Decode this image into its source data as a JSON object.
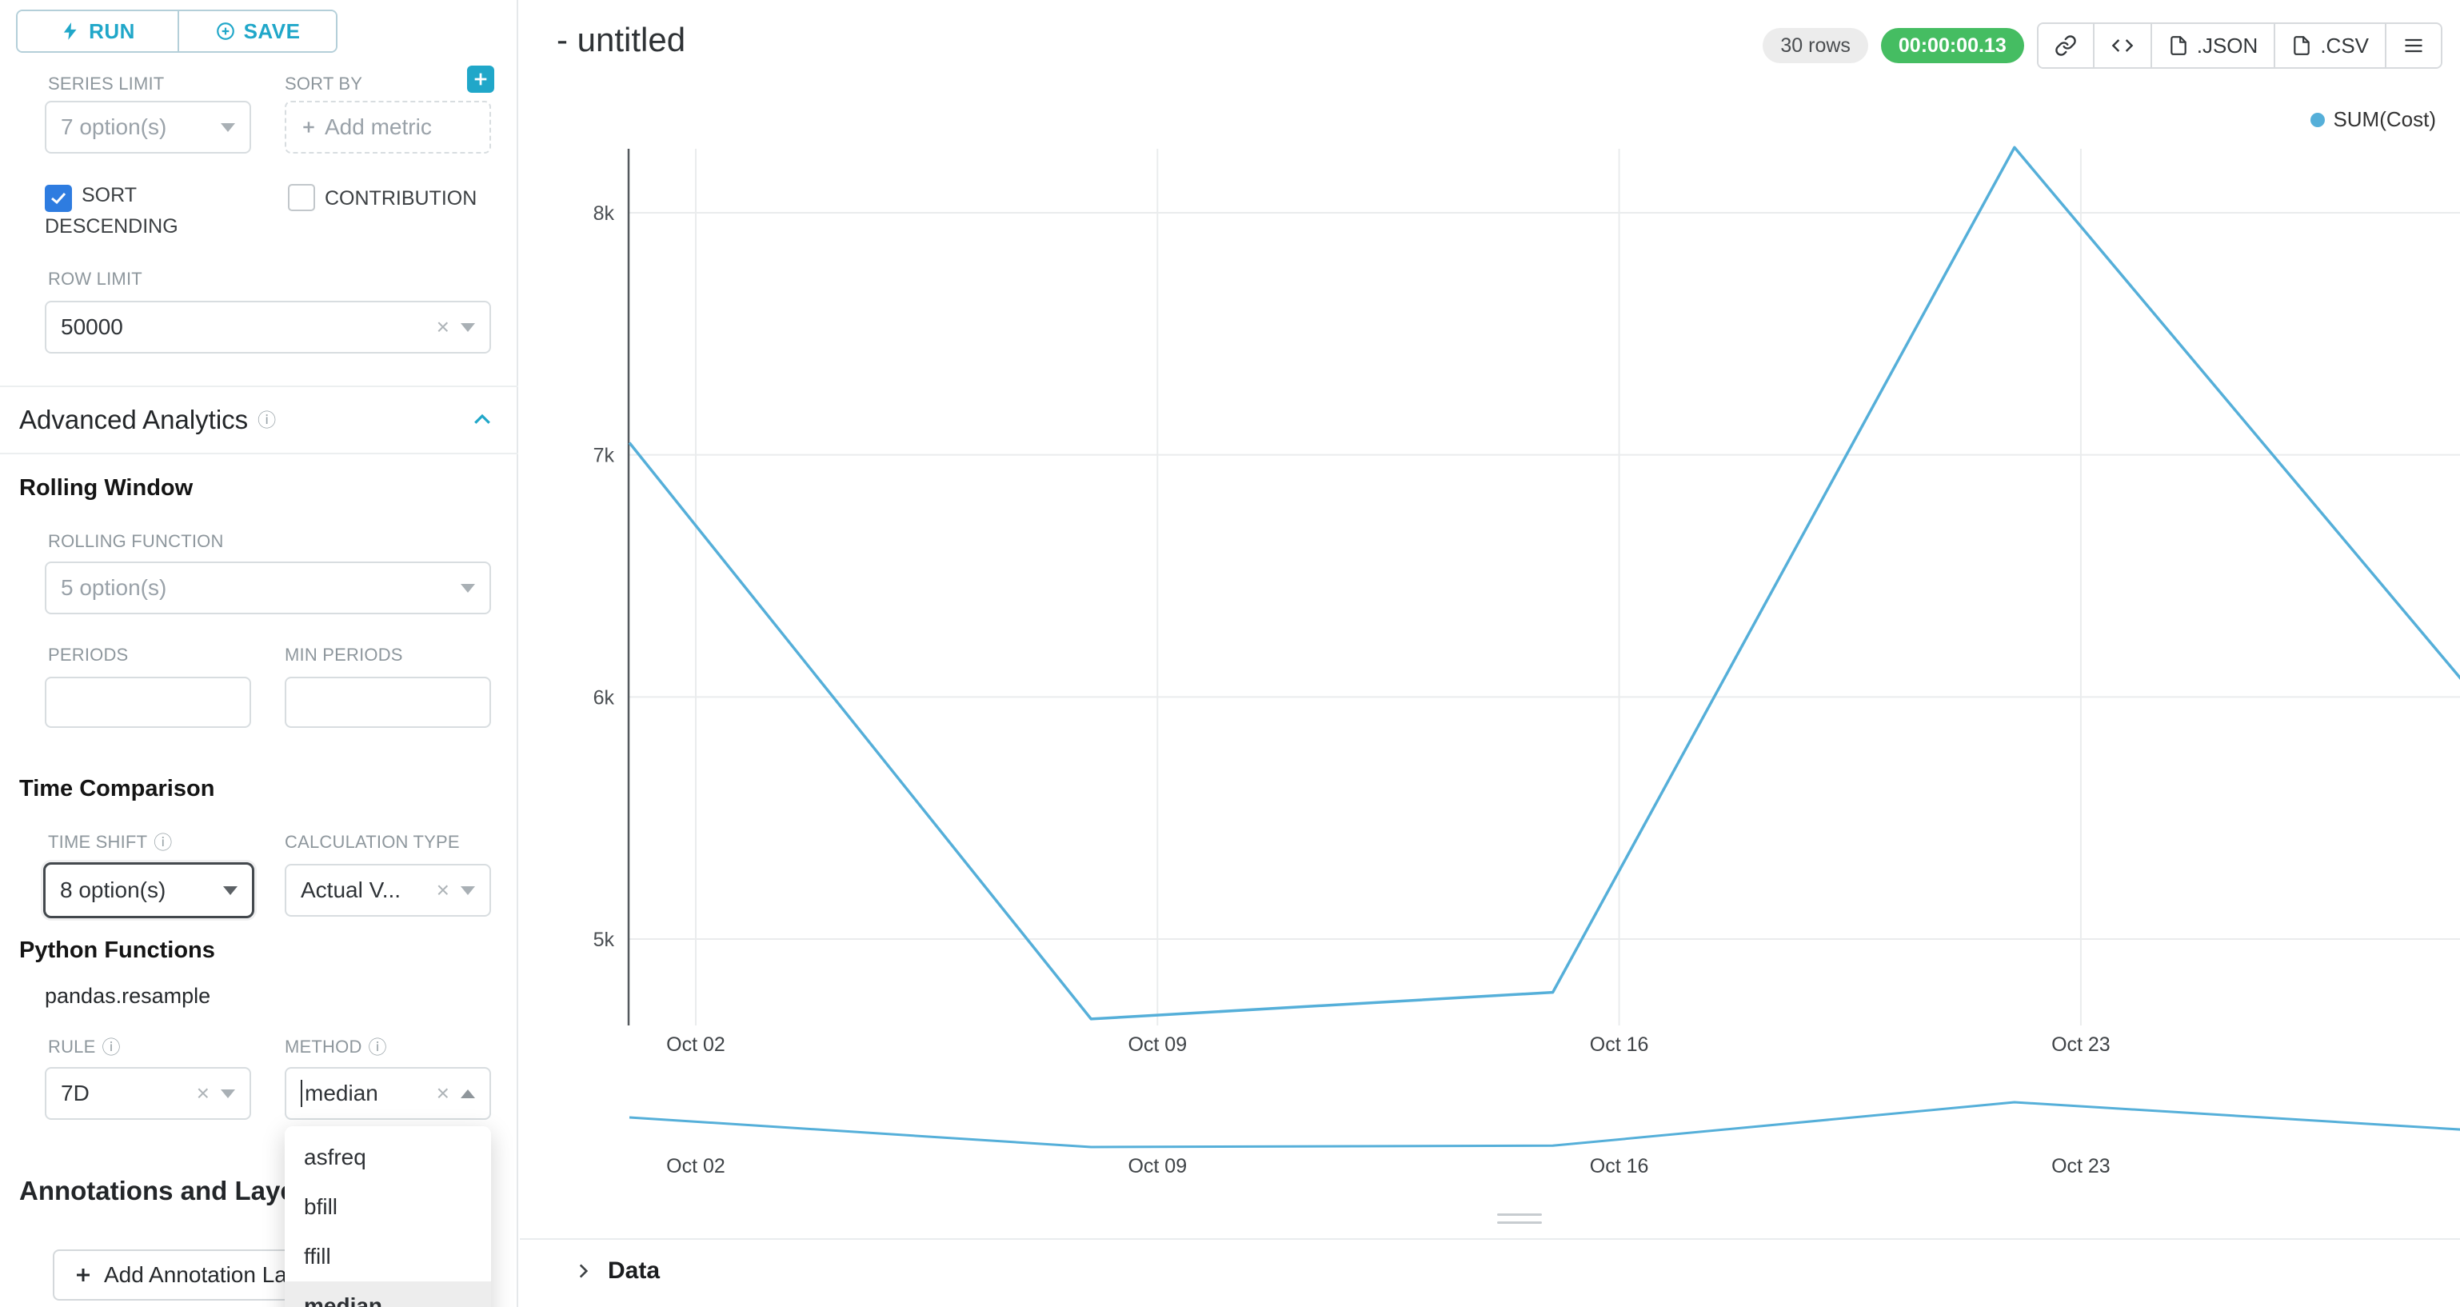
{
  "toolbar": {
    "run": "RUN",
    "save": "SAVE"
  },
  "controls": {
    "series_limit_label": "SERIES LIMIT",
    "series_limit_value": "7 option(s)",
    "sort_by_label": "SORT BY",
    "sort_by_placeholder": "Add metric",
    "sort_descending_label": "SORT DESCENDING",
    "contribution_label": "CONTRIBUTION",
    "row_limit_label": "ROW LIMIT",
    "row_limit_value": "50000",
    "advanced_analytics_title": "Advanced Analytics",
    "rolling_window_title": "Rolling Window",
    "rolling_function_label": "ROLLING FUNCTION",
    "rolling_function_value": "5 option(s)",
    "periods_label": "PERIODS",
    "min_periods_label": "MIN PERIODS",
    "time_comparison_title": "Time Comparison",
    "time_shift_label": "TIME SHIFT",
    "time_shift_value": "8 option(s)",
    "calculation_type_label": "CALCULATION TYPE",
    "calculation_type_value": "Actual V...",
    "python_functions_title": "Python Functions",
    "python_functions_subtitle": "pandas.resample",
    "rule_label": "RULE",
    "rule_value": "7D",
    "method_label": "METHOD",
    "method_value": "median",
    "method_options": [
      "asfreq",
      "bfill",
      "ffill",
      "median"
    ],
    "method_selected_option": "median",
    "annotations_title": "Annotations and Layers",
    "add_annotation_button": "Add Annotation Layer"
  },
  "header": {
    "title": "- untitled",
    "rows_badge": "30 rows",
    "timer_badge": "00:00:00.13",
    "json_button": ".JSON",
    "csv_button": ".CSV"
  },
  "chart_data": {
    "type": "line",
    "title": "",
    "xlabel": "",
    "ylabel": "",
    "legend_position": "top-right",
    "grid": true,
    "color": "#55AFD9",
    "series": [
      {
        "name": "SUM(Cost)",
        "x": [
          "Oct 01",
          "Oct 08",
          "Oct 15",
          "Oct 22",
          "Oct 29"
        ],
        "y": [
          7050,
          4670,
          4780,
          8270,
          6000
        ]
      }
    ],
    "x_axis_ticks": [
      "Oct 02",
      "Oct 09",
      "Oct 16",
      "Oct 23"
    ],
    "y_axis_ticks": [
      {
        "label": "8k",
        "value": 8000
      },
      {
        "label": "7k",
        "value": 7000
      },
      {
        "label": "6k",
        "value": 6000
      },
      {
        "label": "5k",
        "value": 5000
      }
    ],
    "ylim": [
      4400,
      8500
    ],
    "range_selector": {
      "x_axis_ticks": [
        "Oct 02",
        "Oct 09",
        "Oct 16",
        "Oct 23"
      ]
    }
  },
  "data_panel": {
    "title": "Data"
  },
  "colors": {
    "accent": "#20A7C9",
    "checkbox_blue": "#2E7CE0",
    "timer_green": "#45BD62",
    "line_blue": "#55AFD9"
  }
}
